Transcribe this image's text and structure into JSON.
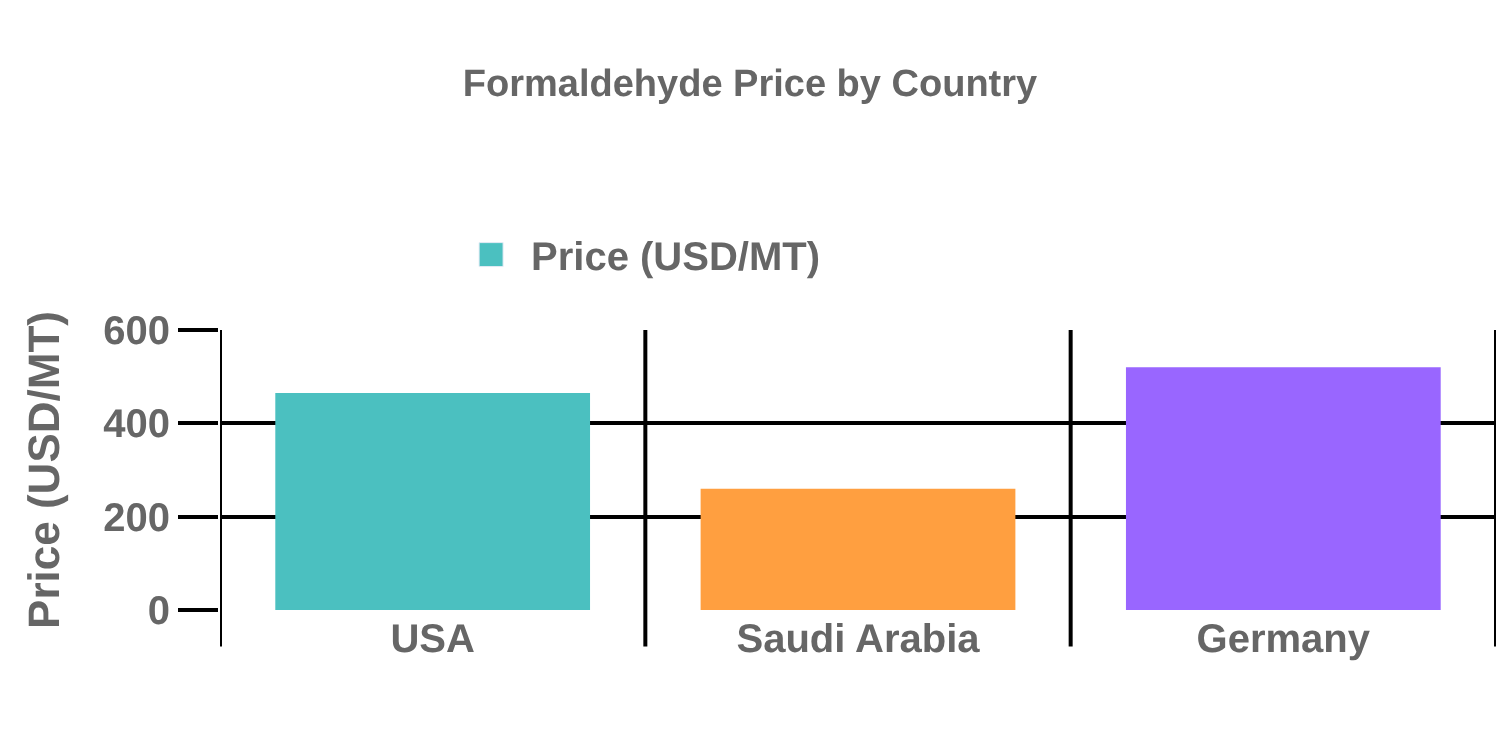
{
  "chart_data": {
    "type": "bar",
    "title": "Formaldehyde Price by Country",
    "ylabel": "Price (USD/MT)",
    "categories": [
      "USA",
      "Saudi Arabia",
      "Germany"
    ],
    "series": [
      {
        "name": "Price (USD/MT)",
        "color": "#4bc0c0",
        "colors": [
          "#4bc0c0",
          "#ff9f40",
          "#9966ff"
        ],
        "values": [
          465,
          260,
          520
        ]
      }
    ],
    "ylim": [
      0,
      600
    ],
    "yticks": [
      0,
      200,
      400,
      600
    ],
    "grid": true,
    "legend": "top"
  }
}
